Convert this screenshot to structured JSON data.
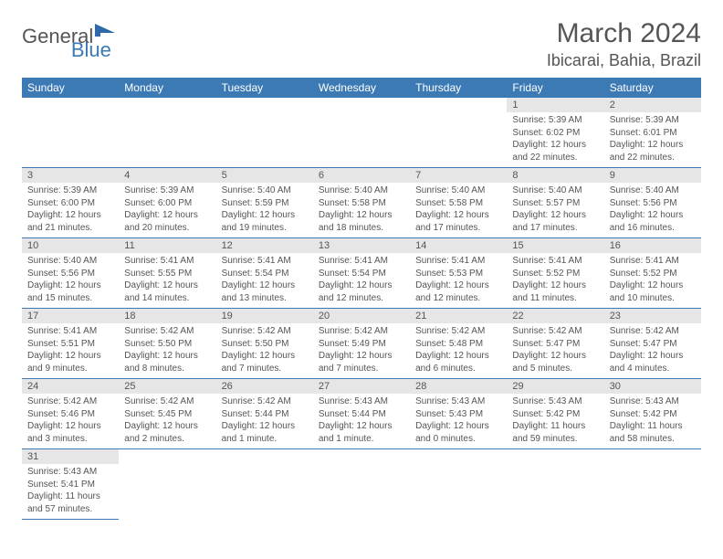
{
  "brand": {
    "part1": "General",
    "part2": "Blue"
  },
  "title": "March 2024",
  "location": "Ibicarai, Bahia, Brazil",
  "colors": {
    "header_bg": "#3c7ab5",
    "header_text": "#ffffff",
    "daynum_bg": "#e6e6e6",
    "text": "#555555",
    "rule": "#3c7ab5",
    "page_bg": "#ffffff"
  },
  "typography": {
    "title_fontsize": 30,
    "location_fontsize": 18,
    "dayhead_fontsize": 12,
    "daynum_fontsize": 11,
    "body_fontsize": 10
  },
  "day_headers": [
    "Sunday",
    "Monday",
    "Tuesday",
    "Wednesday",
    "Thursday",
    "Friday",
    "Saturday"
  ],
  "weeks": [
    [
      null,
      null,
      null,
      null,
      null,
      {
        "n": "1",
        "sr": "Sunrise: 5:39 AM",
        "ss": "Sunset: 6:02 PM",
        "dl1": "Daylight: 12 hours",
        "dl2": "and 22 minutes."
      },
      {
        "n": "2",
        "sr": "Sunrise: 5:39 AM",
        "ss": "Sunset: 6:01 PM",
        "dl1": "Daylight: 12 hours",
        "dl2": "and 22 minutes."
      }
    ],
    [
      {
        "n": "3",
        "sr": "Sunrise: 5:39 AM",
        "ss": "Sunset: 6:00 PM",
        "dl1": "Daylight: 12 hours",
        "dl2": "and 21 minutes."
      },
      {
        "n": "4",
        "sr": "Sunrise: 5:39 AM",
        "ss": "Sunset: 6:00 PM",
        "dl1": "Daylight: 12 hours",
        "dl2": "and 20 minutes."
      },
      {
        "n": "5",
        "sr": "Sunrise: 5:40 AM",
        "ss": "Sunset: 5:59 PM",
        "dl1": "Daylight: 12 hours",
        "dl2": "and 19 minutes."
      },
      {
        "n": "6",
        "sr": "Sunrise: 5:40 AM",
        "ss": "Sunset: 5:58 PM",
        "dl1": "Daylight: 12 hours",
        "dl2": "and 18 minutes."
      },
      {
        "n": "7",
        "sr": "Sunrise: 5:40 AM",
        "ss": "Sunset: 5:58 PM",
        "dl1": "Daylight: 12 hours",
        "dl2": "and 17 minutes."
      },
      {
        "n": "8",
        "sr": "Sunrise: 5:40 AM",
        "ss": "Sunset: 5:57 PM",
        "dl1": "Daylight: 12 hours",
        "dl2": "and 17 minutes."
      },
      {
        "n": "9",
        "sr": "Sunrise: 5:40 AM",
        "ss": "Sunset: 5:56 PM",
        "dl1": "Daylight: 12 hours",
        "dl2": "and 16 minutes."
      }
    ],
    [
      {
        "n": "10",
        "sr": "Sunrise: 5:40 AM",
        "ss": "Sunset: 5:56 PM",
        "dl1": "Daylight: 12 hours",
        "dl2": "and 15 minutes."
      },
      {
        "n": "11",
        "sr": "Sunrise: 5:41 AM",
        "ss": "Sunset: 5:55 PM",
        "dl1": "Daylight: 12 hours",
        "dl2": "and 14 minutes."
      },
      {
        "n": "12",
        "sr": "Sunrise: 5:41 AM",
        "ss": "Sunset: 5:54 PM",
        "dl1": "Daylight: 12 hours",
        "dl2": "and 13 minutes."
      },
      {
        "n": "13",
        "sr": "Sunrise: 5:41 AM",
        "ss": "Sunset: 5:54 PM",
        "dl1": "Daylight: 12 hours",
        "dl2": "and 12 minutes."
      },
      {
        "n": "14",
        "sr": "Sunrise: 5:41 AM",
        "ss": "Sunset: 5:53 PM",
        "dl1": "Daylight: 12 hours",
        "dl2": "and 12 minutes."
      },
      {
        "n": "15",
        "sr": "Sunrise: 5:41 AM",
        "ss": "Sunset: 5:52 PM",
        "dl1": "Daylight: 12 hours",
        "dl2": "and 11 minutes."
      },
      {
        "n": "16",
        "sr": "Sunrise: 5:41 AM",
        "ss": "Sunset: 5:52 PM",
        "dl1": "Daylight: 12 hours",
        "dl2": "and 10 minutes."
      }
    ],
    [
      {
        "n": "17",
        "sr": "Sunrise: 5:41 AM",
        "ss": "Sunset: 5:51 PM",
        "dl1": "Daylight: 12 hours",
        "dl2": "and 9 minutes."
      },
      {
        "n": "18",
        "sr": "Sunrise: 5:42 AM",
        "ss": "Sunset: 5:50 PM",
        "dl1": "Daylight: 12 hours",
        "dl2": "and 8 minutes."
      },
      {
        "n": "19",
        "sr": "Sunrise: 5:42 AM",
        "ss": "Sunset: 5:50 PM",
        "dl1": "Daylight: 12 hours",
        "dl2": "and 7 minutes."
      },
      {
        "n": "20",
        "sr": "Sunrise: 5:42 AM",
        "ss": "Sunset: 5:49 PM",
        "dl1": "Daylight: 12 hours",
        "dl2": "and 7 minutes."
      },
      {
        "n": "21",
        "sr": "Sunrise: 5:42 AM",
        "ss": "Sunset: 5:48 PM",
        "dl1": "Daylight: 12 hours",
        "dl2": "and 6 minutes."
      },
      {
        "n": "22",
        "sr": "Sunrise: 5:42 AM",
        "ss": "Sunset: 5:47 PM",
        "dl1": "Daylight: 12 hours",
        "dl2": "and 5 minutes."
      },
      {
        "n": "23",
        "sr": "Sunrise: 5:42 AM",
        "ss": "Sunset: 5:47 PM",
        "dl1": "Daylight: 12 hours",
        "dl2": "and 4 minutes."
      }
    ],
    [
      {
        "n": "24",
        "sr": "Sunrise: 5:42 AM",
        "ss": "Sunset: 5:46 PM",
        "dl1": "Daylight: 12 hours",
        "dl2": "and 3 minutes."
      },
      {
        "n": "25",
        "sr": "Sunrise: 5:42 AM",
        "ss": "Sunset: 5:45 PM",
        "dl1": "Daylight: 12 hours",
        "dl2": "and 2 minutes."
      },
      {
        "n": "26",
        "sr": "Sunrise: 5:42 AM",
        "ss": "Sunset: 5:44 PM",
        "dl1": "Daylight: 12 hours",
        "dl2": "and 1 minute."
      },
      {
        "n": "27",
        "sr": "Sunrise: 5:43 AM",
        "ss": "Sunset: 5:44 PM",
        "dl1": "Daylight: 12 hours",
        "dl2": "and 1 minute."
      },
      {
        "n": "28",
        "sr": "Sunrise: 5:43 AM",
        "ss": "Sunset: 5:43 PM",
        "dl1": "Daylight: 12 hours",
        "dl2": "and 0 minutes."
      },
      {
        "n": "29",
        "sr": "Sunrise: 5:43 AM",
        "ss": "Sunset: 5:42 PM",
        "dl1": "Daylight: 11 hours",
        "dl2": "and 59 minutes."
      },
      {
        "n": "30",
        "sr": "Sunrise: 5:43 AM",
        "ss": "Sunset: 5:42 PM",
        "dl1": "Daylight: 11 hours",
        "dl2": "and 58 minutes."
      }
    ],
    [
      {
        "n": "31",
        "sr": "Sunrise: 5:43 AM",
        "ss": "Sunset: 5:41 PM",
        "dl1": "Daylight: 11 hours",
        "dl2": "and 57 minutes."
      },
      null,
      null,
      null,
      null,
      null,
      null
    ]
  ]
}
